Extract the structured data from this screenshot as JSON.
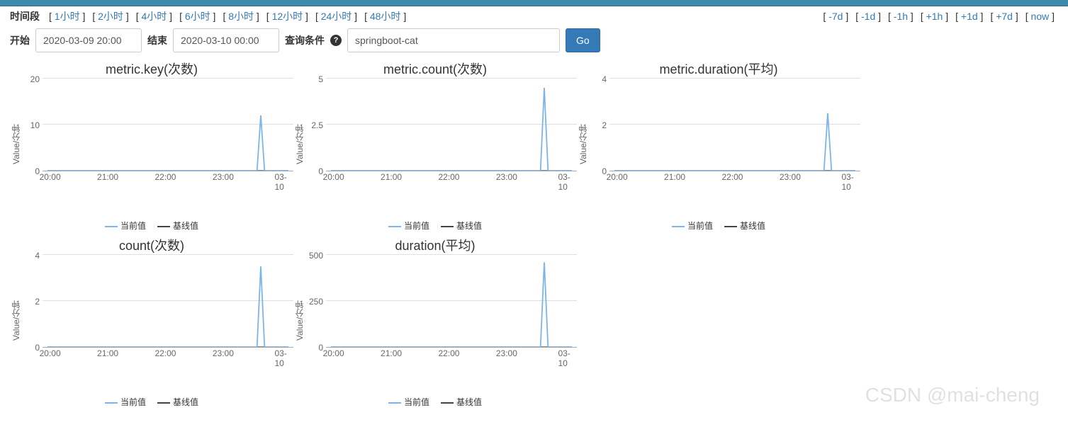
{
  "topbar_color": "#3e8aaa",
  "time": {
    "label": "时间段",
    "ranges": [
      "1小时",
      "2小时",
      "4小时",
      "6小时",
      "8小时",
      "12小时",
      "24小时",
      "48小时"
    ],
    "shifts": [
      "-7d",
      "-1d",
      "-1h",
      "+1h",
      "+1d",
      "+7d",
      "now"
    ]
  },
  "controls": {
    "start_label": "开始",
    "start_value": "2020-03-09 20:00",
    "end_label": "结束",
    "end_value": "2020-03-10 00:00",
    "query_label": "查询条件",
    "query_value": "springboot-cat",
    "go_label": "Go"
  },
  "common": {
    "ylabel": "Value/分钟",
    "legend_current": "当前值",
    "legend_baseline": "基线值",
    "current_color": "#7cb5ec",
    "baseline_color": "#434348",
    "xticks": [
      {
        "label": "20:00",
        "pct": 3
      },
      {
        "label": "21:00",
        "pct": 26
      },
      {
        "label": "22:00",
        "pct": 49
      },
      {
        "label": "23:00",
        "pct": 72
      },
      {
        "label": "03-10",
        "pct": 95
      }
    ],
    "spike_left_pct": 87,
    "grid_color": "#e0e0e0"
  },
  "charts": [
    {
      "title": "metric.key(次数)",
      "ymax": 20,
      "ytick": 10,
      "spike": 12
    },
    {
      "title": "metric.count(次数)",
      "ymax": 5,
      "ytick": 2.5,
      "spike": 4.5
    },
    {
      "title": "metric.duration(平均)",
      "ymax": 4,
      "ytick": 2,
      "spike": 2.5
    },
    {
      "title": "count(次数)",
      "ymax": 4,
      "ytick": 2,
      "spike": 3.5
    },
    {
      "title": "duration(平均)",
      "ymax": 500,
      "ytick": 250,
      "spike": 460
    }
  ],
  "attribution": "CSDN @mai-cheng"
}
